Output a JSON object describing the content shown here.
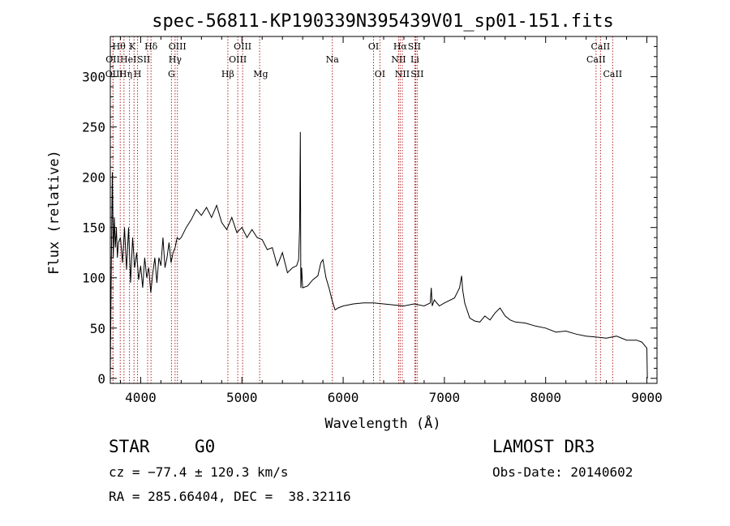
{
  "chart_data": {
    "type": "line",
    "title": "spec-56811-KP190339N395439V01_sp01-151.fits",
    "xlabel": "Wavelength (Å)",
    "ylabel": "Flux (relative)",
    "xlim": [
      3700,
      9100
    ],
    "ylim": [
      -5,
      340
    ],
    "x_ticks": [
      4000,
      5000,
      6000,
      7000,
      8000,
      9000
    ],
    "y_ticks": [
      0,
      50,
      100,
      150,
      200,
      250,
      300
    ],
    "x_tick_labels": [
      "4000",
      "5000",
      "6000",
      "7000",
      "8000",
      "9000"
    ],
    "y_tick_labels": [
      "0",
      "50",
      "100",
      "150",
      "200",
      "250",
      "300"
    ],
    "series": [
      {
        "name": "spectrum",
        "x": [
          3700,
          3710,
          3720,
          3730,
          3740,
          3750,
          3760,
          3770,
          3780,
          3800,
          3820,
          3840,
          3860,
          3880,
          3900,
          3920,
          3940,
          3960,
          3980,
          4000,
          4020,
          4040,
          4060,
          4080,
          4100,
          4120,
          4140,
          4160,
          4180,
          4200,
          4220,
          4240,
          4260,
          4280,
          4300,
          4320,
          4340,
          4360,
          4380,
          4400,
          4450,
          4500,
          4550,
          4600,
          4650,
          4700,
          4750,
          4800,
          4850,
          4900,
          4950,
          5000,
          5050,
          5100,
          5150,
          5200,
          5250,
          5300,
          5350,
          5400,
          5450,
          5500,
          5540,
          5560,
          5570,
          5577,
          5582,
          5590,
          5600,
          5650,
          5700,
          5750,
          5780,
          5800,
          5830,
          5860,
          5890,
          5920,
          5950,
          6000,
          6100,
          6200,
          6300,
          6400,
          6500,
          6600,
          6700,
          6800,
          6860,
          6870,
          6880,
          6900,
          6950,
          7000,
          7100,
          7150,
          7170,
          7180,
          7190,
          7200,
          7250,
          7300,
          7350,
          7400,
          7450,
          7500,
          7550,
          7600,
          7650,
          7700,
          7800,
          7900,
          8000,
          8100,
          8200,
          8300,
          8400,
          8500,
          8600,
          8700,
          8800,
          8900,
          8950,
          9000,
          9005
        ],
        "y": [
          5,
          110,
          205,
          120,
          160,
          130,
          150,
          120,
          135,
          140,
          115,
          150,
          108,
          150,
          95,
          140,
          110,
          125,
          98,
          112,
          90,
          120,
          100,
          110,
          85,
          105,
          120,
          95,
          120,
          112,
          140,
          110,
          120,
          135,
          115,
          125,
          130,
          140,
          138,
          140,
          150,
          158,
          168,
          162,
          170,
          160,
          172,
          155,
          148,
          160,
          145,
          150,
          140,
          148,
          140,
          138,
          128,
          130,
          112,
          125,
          105,
          110,
          112,
          118,
          150,
          245,
          90,
          110,
          90,
          92,
          98,
          102,
          115,
          118,
          100,
          90,
          78,
          68,
          70,
          72,
          74,
          75,
          75,
          74,
          73,
          72,
          74,
          72,
          75,
          90,
          72,
          78,
          72,
          75,
          80,
          90,
          102,
          88,
          82,
          75,
          60,
          57,
          56,
          62,
          58,
          65,
          70,
          62,
          58,
          56,
          55,
          52,
          50,
          46,
          47,
          44,
          42,
          41,
          40,
          42,
          38,
          38,
          36,
          30,
          0
        ]
      }
    ]
  },
  "emission_lines": [
    {
      "label": "Hθ",
      "wl": 3798,
      "label_wl": 3786,
      "row": 0
    },
    {
      "label": "OII",
      "wl": 3727,
      "label_wl": 3725,
      "row": 1
    },
    {
      "label": "OIII",
      "wl": 3727,
      "label_wl": 3738,
      "row": 2
    },
    {
      "label": "Hη",
      "wl": 3835,
      "label_wl": 3852,
      "row": 2
    },
    {
      "label": "K",
      "wl": 3934,
      "label_wl": 3918,
      "row": 0
    },
    {
      "label": "HeI",
      "wl": 3889,
      "label_wl": 3878,
      "row": 1
    },
    {
      "label": "SII",
      "wl": 4069,
      "label_wl": 4030,
      "row": 1
    },
    {
      "label": "H",
      "wl": 3969,
      "label_wl": 3969,
      "row": 2
    },
    {
      "label": "Hδ",
      "wl": 4102,
      "label_wl": 4102,
      "row": 0
    },
    {
      "label": "OIII",
      "wl": 4363,
      "label_wl": 4363,
      "row": 0
    },
    {
      "label": "Hγ",
      "wl": 4340,
      "label_wl": 4340,
      "row": 1
    },
    {
      "label": "G",
      "wl": 4304,
      "label_wl": 4304,
      "row": 2
    },
    {
      "label": "OIII",
      "wl": 5007,
      "label_wl": 5007,
      "row": 0
    },
    {
      "label": "OIII",
      "wl": 4959,
      "label_wl": 4959,
      "row": 1
    },
    {
      "label": "Hβ",
      "wl": 4861,
      "label_wl": 4861,
      "row": 2
    },
    {
      "label": "Mg",
      "wl": 5175,
      "label_wl": 5185,
      "row": 2
    },
    {
      "label": "Na",
      "wl": 5893,
      "label_wl": 5893,
      "row": 1
    },
    {
      "label": "OI",
      "wl": 6300,
      "label_wl": 6300,
      "row": 0
    },
    {
      "label": "OI",
      "wl": 6363,
      "label_wl": 6363,
      "row": 2
    },
    {
      "label": "Hα",
      "wl": 6563,
      "label_wl": 6563,
      "row": 0
    },
    {
      "label": "SII",
      "wl": 6717,
      "label_wl": 6703,
      "row": 0
    },
    {
      "label": "NII",
      "wl": 6548,
      "label_wl": 6548,
      "row": 1
    },
    {
      "label": "Li",
      "wl": 6708,
      "label_wl": 6708,
      "row": 1
    },
    {
      "label": "NII",
      "wl": 6584,
      "label_wl": 6584,
      "row": 2
    },
    {
      "label": "SII",
      "wl": 6731,
      "label_wl": 6731,
      "row": 2
    },
    {
      "label": "CaII",
      "wl": 8542,
      "label_wl": 8542,
      "row": 0
    },
    {
      "label": "CaII",
      "wl": 8498,
      "label_wl": 8498,
      "row": 1
    },
    {
      "label": "CaII",
      "wl": 8662,
      "label_wl": 8662,
      "row": 2
    }
  ],
  "info": {
    "object_class": "STAR",
    "subclass": "G0",
    "survey": "LAMOST DR3",
    "cz": "cz = −77.4 ± 120.3 km/s",
    "obs_date": "Obs-Date: 20140602",
    "radec": "RA = 285.66404, DEC =  38.32116"
  },
  "colors": {
    "line": "#000000",
    "marker": "#b22222",
    "background": "#ffffff"
  }
}
